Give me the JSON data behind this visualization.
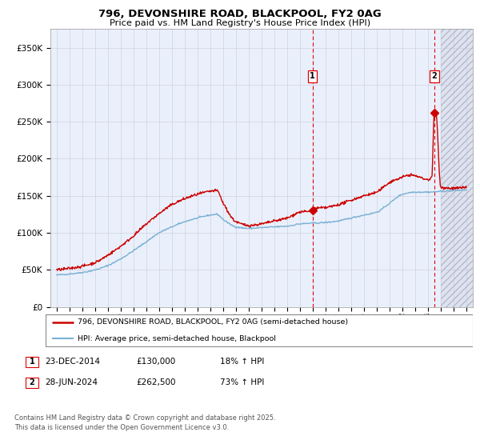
{
  "title_line1": "796, DEVONSHIRE ROAD, BLACKPOOL, FY2 0AG",
  "title_line2": "Price paid vs. HM Land Registry's House Price Index (HPI)",
  "ylabel_ticks": [
    "£0",
    "£50K",
    "£100K",
    "£150K",
    "£200K",
    "£250K",
    "£300K",
    "£350K"
  ],
  "ytick_values": [
    0,
    50000,
    100000,
    150000,
    200000,
    250000,
    300000,
    350000
  ],
  "ylim": [
    0,
    375000
  ],
  "xlim_start": 1994.5,
  "xlim_end": 2027.5,
  "sale1_x": 2014.98,
  "sale1_price": 130000,
  "sale2_x": 2024.49,
  "sale2_price": 262500,
  "legend_entry1": "796, DEVONSHIRE ROAD, BLACKPOOL, FY2 0AG (semi-detached house)",
  "legend_entry2": "HPI: Average price, semi-detached house, Blackpool",
  "annotation1_date": "23-DEC-2014",
  "annotation1_price": "£130,000",
  "annotation1_hpi": "18% ↑ HPI",
  "annotation2_date": "28-JUN-2024",
  "annotation2_price": "£262,500",
  "annotation2_hpi": "73% ↑ HPI",
  "footer": "Contains HM Land Registry data © Crown copyright and database right 2025.\nThis data is licensed under the Open Government Licence v3.0.",
  "line_color_red": "#cc0000",
  "line_color_blue": "#7ab0d4",
  "bg_plot": "#eaf0fb",
  "bg_hatch_color": "#dde4f0",
  "grid_color": "#c8c8d8",
  "vline_color": "#dd0000",
  "future_start": 2025.0,
  "xtick_years": [
    1995,
    1996,
    1997,
    1998,
    1999,
    2000,
    2001,
    2002,
    2003,
    2004,
    2005,
    2006,
    2007,
    2008,
    2009,
    2010,
    2011,
    2012,
    2013,
    2014,
    2015,
    2016,
    2017,
    2018,
    2019,
    2020,
    2021,
    2022,
    2023,
    2024,
    2025,
    2026,
    2027
  ]
}
